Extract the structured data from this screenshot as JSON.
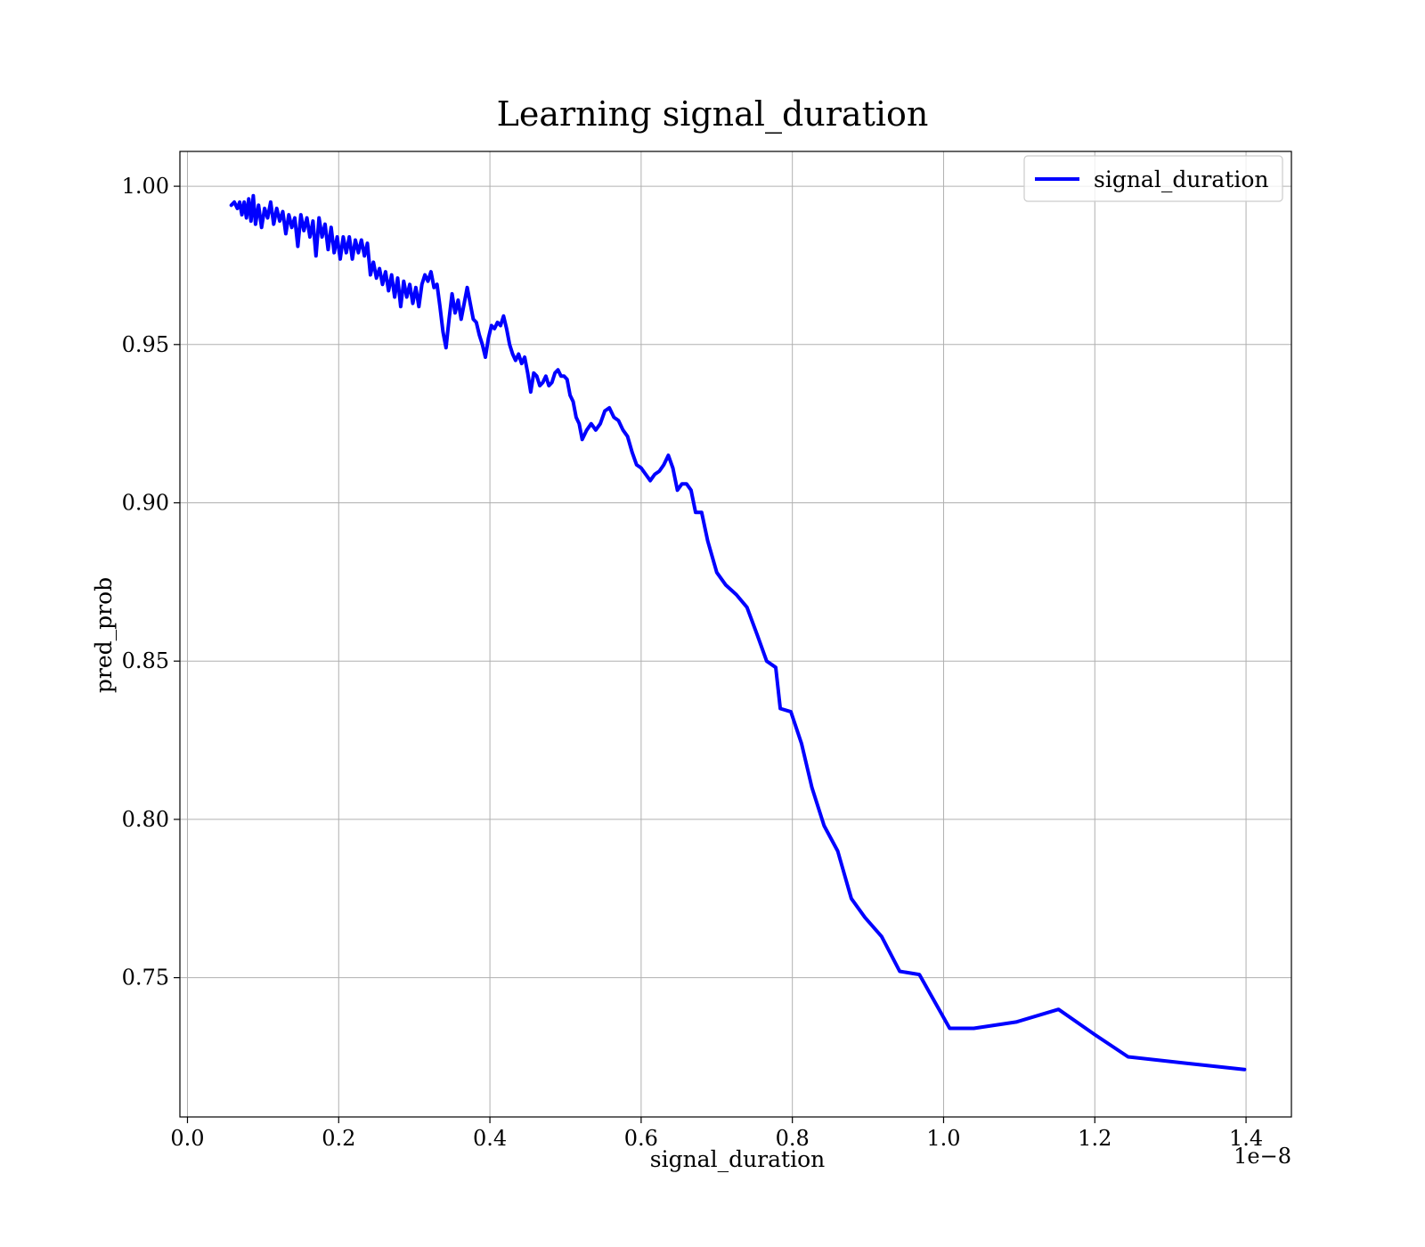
{
  "chart_data": {
    "type": "line",
    "title": "Learning signal_duration",
    "xlabel": "signal_duration",
    "ylabel": "pred_prob",
    "x_offset_label": "1e−8",
    "xlim": [
      -0.01,
      1.46
    ],
    "ylim": [
      0.706,
      1.011
    ],
    "x_ticks": [
      0.0,
      0.2,
      0.4,
      0.6,
      0.8,
      1.0,
      1.2,
      1.4
    ],
    "x_tick_labels": [
      "0.0",
      "0.2",
      "0.4",
      "0.6",
      "0.8",
      "1.0",
      "1.2",
      "1.4"
    ],
    "y_ticks": [
      0.75,
      0.8,
      0.85,
      0.9,
      0.95,
      1.0
    ],
    "y_tick_labels": [
      "0.75",
      "0.80",
      "0.85",
      "0.90",
      "0.95",
      "1.00"
    ],
    "grid": true,
    "legend_position": "top-right",
    "series": [
      {
        "name": "signal_duration",
        "color": "#0000ff",
        "points": [
          [
            0.058,
            0.994
          ],
          [
            0.062,
            0.995
          ],
          [
            0.066,
            0.993
          ],
          [
            0.069,
            0.995
          ],
          [
            0.072,
            0.991
          ],
          [
            0.075,
            0.995
          ],
          [
            0.078,
            0.99
          ],
          [
            0.081,
            0.996
          ],
          [
            0.084,
            0.989
          ],
          [
            0.087,
            0.997
          ],
          [
            0.09,
            0.988
          ],
          [
            0.094,
            0.994
          ],
          [
            0.098,
            0.987
          ],
          [
            0.102,
            0.993
          ],
          [
            0.106,
            0.99
          ],
          [
            0.11,
            0.995
          ],
          [
            0.114,
            0.988
          ],
          [
            0.118,
            0.993
          ],
          [
            0.122,
            0.989
          ],
          [
            0.126,
            0.992
          ],
          [
            0.13,
            0.985
          ],
          [
            0.134,
            0.991
          ],
          [
            0.138,
            0.987
          ],
          [
            0.142,
            0.99
          ],
          [
            0.146,
            0.981
          ],
          [
            0.15,
            0.991
          ],
          [
            0.154,
            0.986
          ],
          [
            0.158,
            0.99
          ],
          [
            0.162,
            0.984
          ],
          [
            0.166,
            0.989
          ],
          [
            0.17,
            0.978
          ],
          [
            0.174,
            0.99
          ],
          [
            0.178,
            0.984
          ],
          [
            0.182,
            0.988
          ],
          [
            0.186,
            0.98
          ],
          [
            0.19,
            0.987
          ],
          [
            0.194,
            0.979
          ],
          [
            0.198,
            0.984
          ],
          [
            0.202,
            0.977
          ],
          [
            0.206,
            0.984
          ],
          [
            0.21,
            0.979
          ],
          [
            0.214,
            0.984
          ],
          [
            0.218,
            0.977
          ],
          [
            0.222,
            0.983
          ],
          [
            0.226,
            0.979
          ],
          [
            0.23,
            0.983
          ],
          [
            0.234,
            0.978
          ],
          [
            0.238,
            0.982
          ],
          [
            0.242,
            0.972
          ],
          [
            0.246,
            0.976
          ],
          [
            0.25,
            0.971
          ],
          [
            0.254,
            0.974
          ],
          [
            0.258,
            0.969
          ],
          [
            0.262,
            0.973
          ],
          [
            0.266,
            0.967
          ],
          [
            0.27,
            0.972
          ],
          [
            0.274,
            0.965
          ],
          [
            0.278,
            0.971
          ],
          [
            0.282,
            0.962
          ],
          [
            0.286,
            0.97
          ],
          [
            0.29,
            0.965
          ],
          [
            0.294,
            0.969
          ],
          [
            0.298,
            0.963
          ],
          [
            0.302,
            0.968
          ],
          [
            0.306,
            0.962
          ],
          [
            0.31,
            0.969
          ],
          [
            0.314,
            0.972
          ],
          [
            0.318,
            0.97
          ],
          [
            0.322,
            0.973
          ],
          [
            0.326,
            0.968
          ],
          [
            0.33,
            0.969
          ],
          [
            0.334,
            0.962
          ],
          [
            0.338,
            0.954
          ],
          [
            0.342,
            0.949
          ],
          [
            0.346,
            0.958
          ],
          [
            0.35,
            0.966
          ],
          [
            0.354,
            0.96
          ],
          [
            0.358,
            0.964
          ],
          [
            0.362,
            0.958
          ],
          [
            0.366,
            0.963
          ],
          [
            0.37,
            0.968
          ],
          [
            0.374,
            0.963
          ],
          [
            0.378,
            0.958
          ],
          [
            0.382,
            0.957
          ],
          [
            0.386,
            0.953
          ],
          [
            0.39,
            0.95
          ],
          [
            0.394,
            0.946
          ],
          [
            0.398,
            0.952
          ],
          [
            0.402,
            0.956
          ],
          [
            0.406,
            0.955
          ],
          [
            0.41,
            0.957
          ],
          [
            0.414,
            0.956
          ],
          [
            0.418,
            0.959
          ],
          [
            0.422,
            0.955
          ],
          [
            0.426,
            0.95
          ],
          [
            0.43,
            0.947
          ],
          [
            0.434,
            0.945
          ],
          [
            0.438,
            0.947
          ],
          [
            0.442,
            0.944
          ],
          [
            0.446,
            0.946
          ],
          [
            0.45,
            0.941
          ],
          [
            0.454,
            0.935
          ],
          [
            0.458,
            0.941
          ],
          [
            0.462,
            0.94
          ],
          [
            0.466,
            0.937
          ],
          [
            0.47,
            0.938
          ],
          [
            0.474,
            0.94
          ],
          [
            0.478,
            0.937
          ],
          [
            0.482,
            0.938
          ],
          [
            0.486,
            0.941
          ],
          [
            0.49,
            0.942
          ],
          [
            0.494,
            0.94
          ],
          [
            0.498,
            0.94
          ],
          [
            0.502,
            0.939
          ],
          [
            0.506,
            0.934
          ],
          [
            0.51,
            0.932
          ],
          [
            0.514,
            0.927
          ],
          [
            0.518,
            0.925
          ],
          [
            0.522,
            0.92
          ],
          [
            0.528,
            0.923
          ],
          [
            0.534,
            0.925
          ],
          [
            0.54,
            0.923
          ],
          [
            0.546,
            0.925
          ],
          [
            0.552,
            0.929
          ],
          [
            0.558,
            0.93
          ],
          [
            0.564,
            0.927
          ],
          [
            0.57,
            0.926
          ],
          [
            0.576,
            0.923
          ],
          [
            0.582,
            0.921
          ],
          [
            0.588,
            0.916
          ],
          [
            0.594,
            0.912
          ],
          [
            0.6,
            0.911
          ],
          [
            0.606,
            0.909
          ],
          [
            0.612,
            0.907
          ],
          [
            0.618,
            0.909
          ],
          [
            0.624,
            0.91
          ],
          [
            0.63,
            0.912
          ],
          [
            0.636,
            0.915
          ],
          [
            0.642,
            0.911
          ],
          [
            0.648,
            0.904
          ],
          [
            0.654,
            0.906
          ],
          [
            0.66,
            0.906
          ],
          [
            0.666,
            0.904
          ],
          [
            0.672,
            0.897
          ],
          [
            0.68,
            0.897
          ],
          [
            0.688,
            0.888
          ],
          [
            0.7,
            0.878
          ],
          [
            0.712,
            0.874
          ],
          [
            0.726,
            0.871
          ],
          [
            0.74,
            0.867
          ],
          [
            0.754,
            0.858
          ],
          [
            0.766,
            0.85
          ],
          [
            0.778,
            0.848
          ],
          [
            0.784,
            0.835
          ],
          [
            0.798,
            0.834
          ],
          [
            0.812,
            0.824
          ],
          [
            0.826,
            0.81
          ],
          [
            0.842,
            0.798
          ],
          [
            0.86,
            0.79
          ],
          [
            0.878,
            0.775
          ],
          [
            0.896,
            0.769
          ],
          [
            0.918,
            0.763
          ],
          [
            0.942,
            0.752
          ],
          [
            0.968,
            0.751
          ],
          [
            1.008,
            0.734
          ],
          [
            1.04,
            0.734
          ],
          [
            1.096,
            0.736
          ],
          [
            1.152,
            0.74
          ],
          [
            1.2,
            0.732
          ],
          [
            1.244,
            0.725
          ],
          [
            1.32,
            0.723
          ],
          [
            1.398,
            0.721
          ]
        ]
      }
    ]
  }
}
